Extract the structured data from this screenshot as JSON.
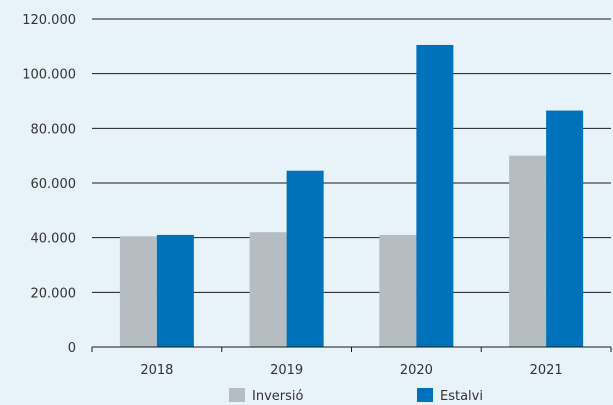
{
  "chart_data": {
    "type": "bar",
    "categories": [
      "2018",
      "2019",
      "2020",
      "2021"
    ],
    "series": [
      {
        "name": "Inversió",
        "values": [
          40500,
          42000,
          41000,
          70000
        ],
        "color": "#b5bdc2"
      },
      {
        "name": "Estalvi",
        "values": [
          41000,
          64500,
          110500,
          86500
        ],
        "color": "#0072bc"
      }
    ],
    "ylim": [
      0,
      120000
    ],
    "y_ticks": [
      0,
      20000,
      40000,
      60000,
      80000,
      100000,
      120000
    ],
    "y_tick_labels": [
      "0",
      "20.000",
      "40.000",
      "60.000",
      "80.000",
      "100.000",
      "120.000"
    ],
    "grid": true,
    "legend_position": "bottom",
    "background_color": "#e8f2f9"
  }
}
